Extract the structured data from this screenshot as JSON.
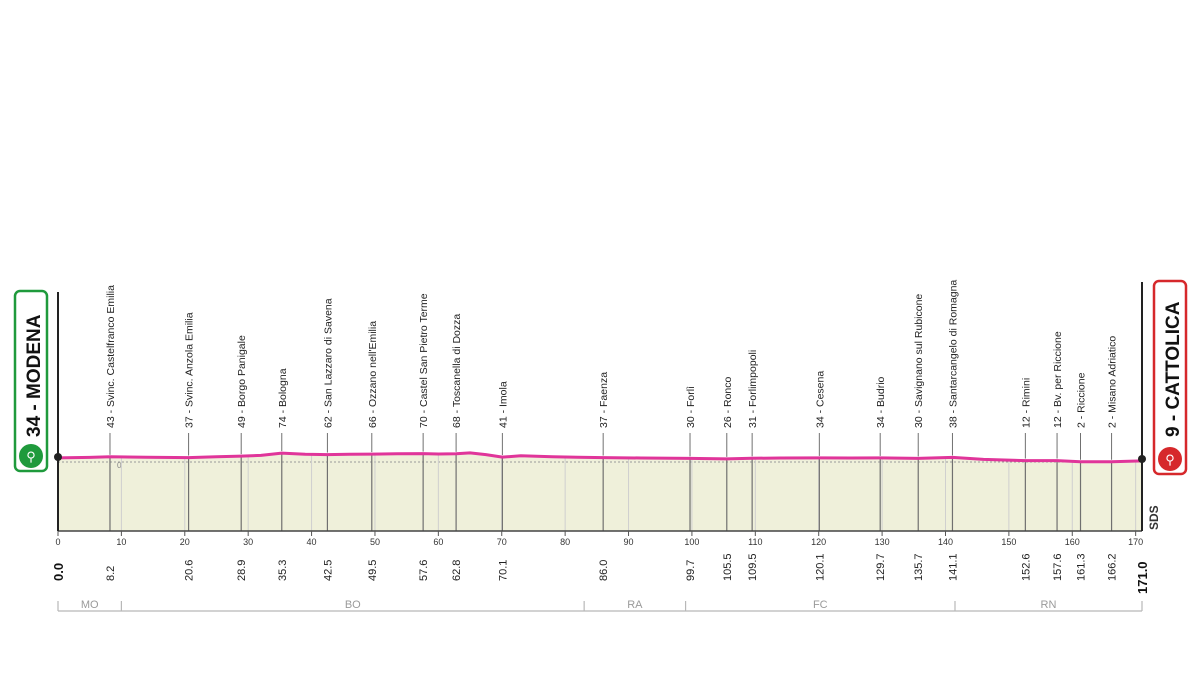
{
  "start": {
    "label": "34 - MODENA",
    "km": "0.0",
    "color": "#1f9a3c"
  },
  "finish": {
    "label": "9 - CATTOLICA",
    "km": "171.0",
    "color": "#d6282b"
  },
  "brand": "SDS",
  "colors": {
    "profile": "#e0359a",
    "fill": "#eff0da",
    "grid": "#cfcfcf",
    "axis": "#444444",
    "region": "#b8b8b8"
  },
  "chart_data": {
    "type": "area",
    "xlim": [
      0,
      171
    ],
    "ylim": [
      0,
      1000
    ],
    "elevation_zero_label": "0",
    "x_ticks": [
      0,
      10,
      20,
      30,
      40,
      50,
      60,
      70,
      80,
      90,
      100,
      110,
      120,
      130,
      140,
      150,
      160,
      170
    ],
    "profile": [
      {
        "km": 0,
        "alt": 34
      },
      {
        "km": 5,
        "alt": 38
      },
      {
        "km": 8.2,
        "alt": 43
      },
      {
        "km": 14,
        "alt": 40
      },
      {
        "km": 20.6,
        "alt": 37
      },
      {
        "km": 25,
        "alt": 44
      },
      {
        "km": 28.9,
        "alt": 49
      },
      {
        "km": 32,
        "alt": 55
      },
      {
        "km": 35.3,
        "alt": 74
      },
      {
        "km": 39,
        "alt": 65
      },
      {
        "km": 42.5,
        "alt": 62
      },
      {
        "km": 46,
        "alt": 64
      },
      {
        "km": 49.5,
        "alt": 66
      },
      {
        "km": 53.5,
        "alt": 68
      },
      {
        "km": 57.6,
        "alt": 70
      },
      {
        "km": 60,
        "alt": 67
      },
      {
        "km": 62.8,
        "alt": 68
      },
      {
        "km": 65,
        "alt": 76
      },
      {
        "km": 67.5,
        "alt": 62
      },
      {
        "km": 70.1,
        "alt": 41
      },
      {
        "km": 73,
        "alt": 52
      },
      {
        "km": 78,
        "alt": 44
      },
      {
        "km": 82,
        "alt": 40
      },
      {
        "km": 86,
        "alt": 37
      },
      {
        "km": 92,
        "alt": 33
      },
      {
        "km": 99.7,
        "alt": 30
      },
      {
        "km": 105.5,
        "alt": 26
      },
      {
        "km": 109.5,
        "alt": 31
      },
      {
        "km": 114,
        "alt": 33
      },
      {
        "km": 120.1,
        "alt": 34
      },
      {
        "km": 125,
        "alt": 33
      },
      {
        "km": 129.7,
        "alt": 34
      },
      {
        "km": 135.7,
        "alt": 30
      },
      {
        "km": 141.1,
        "alt": 38
      },
      {
        "km": 146,
        "alt": 22
      },
      {
        "km": 152.6,
        "alt": 12
      },
      {
        "km": 157.6,
        "alt": 12
      },
      {
        "km": 161.3,
        "alt": 2
      },
      {
        "km": 166.2,
        "alt": 2
      },
      {
        "km": 171,
        "alt": 9
      }
    ],
    "places": [
      {
        "km": 8.2,
        "label": "43 - Svinc. Castelfranco Emilia",
        "dist": "8.2"
      },
      {
        "km": 20.6,
        "label": "37 - Svinc. Anzola Emilia",
        "dist": "20.6"
      },
      {
        "km": 28.9,
        "label": "49 - Borgo Panigale",
        "dist": "28.9"
      },
      {
        "km": 35.3,
        "label": "74 - Bologna",
        "dist": "35.3"
      },
      {
        "km": 42.5,
        "label": "62 - San Lazzaro di Savena",
        "dist": "42.5"
      },
      {
        "km": 49.5,
        "label": "66 - Ozzano nell'Emilia",
        "dist": "49.5"
      },
      {
        "km": 57.6,
        "label": "70 - Castel San Pietro Terme",
        "dist": "57.6"
      },
      {
        "km": 62.8,
        "label": "68 - Toscanella di Dozza",
        "dist": "62.8"
      },
      {
        "km": 70.1,
        "label": "41 - Imola",
        "dist": "70.1"
      },
      {
        "km": 86.0,
        "label": "37 - Faenza",
        "dist": "86.0"
      },
      {
        "km": 99.7,
        "label": "30 - Forlì",
        "dist": "99.7"
      },
      {
        "km": 105.5,
        "label": "26 - Ronco",
        "dist": "105.5"
      },
      {
        "km": 109.5,
        "label": "31 - Forlimpopoli",
        "dist": "109.5"
      },
      {
        "km": 120.1,
        "label": "34 - Cesena",
        "dist": "120.1"
      },
      {
        "km": 129.7,
        "label": "34 - Budrio",
        "dist": "129.7"
      },
      {
        "km": 135.7,
        "label": "30 - Savignano sul Rubicone",
        "dist": "135.7"
      },
      {
        "km": 141.1,
        "label": "38 - Santarcangelo di Romagna",
        "dist": "141.1"
      },
      {
        "km": 152.6,
        "label": "12 - Rimini",
        "dist": "152.6"
      },
      {
        "km": 157.6,
        "label": "12 - Bv. per Riccione",
        "dist": "157.6"
      },
      {
        "km": 161.3,
        "label": "2 - Riccione",
        "dist": "161.3"
      },
      {
        "km": 166.2,
        "label": "2 - Misano Adriatico",
        "dist": "166.2"
      }
    ],
    "regions": [
      {
        "label": "MO",
        "from": 0,
        "to": 10
      },
      {
        "label": "BO",
        "from": 10,
        "to": 83
      },
      {
        "label": "RA",
        "from": 83,
        "to": 99
      },
      {
        "label": "FC",
        "from": 99,
        "to": 141.5
      },
      {
        "label": "RN",
        "from": 141.5,
        "to": 171
      }
    ]
  }
}
